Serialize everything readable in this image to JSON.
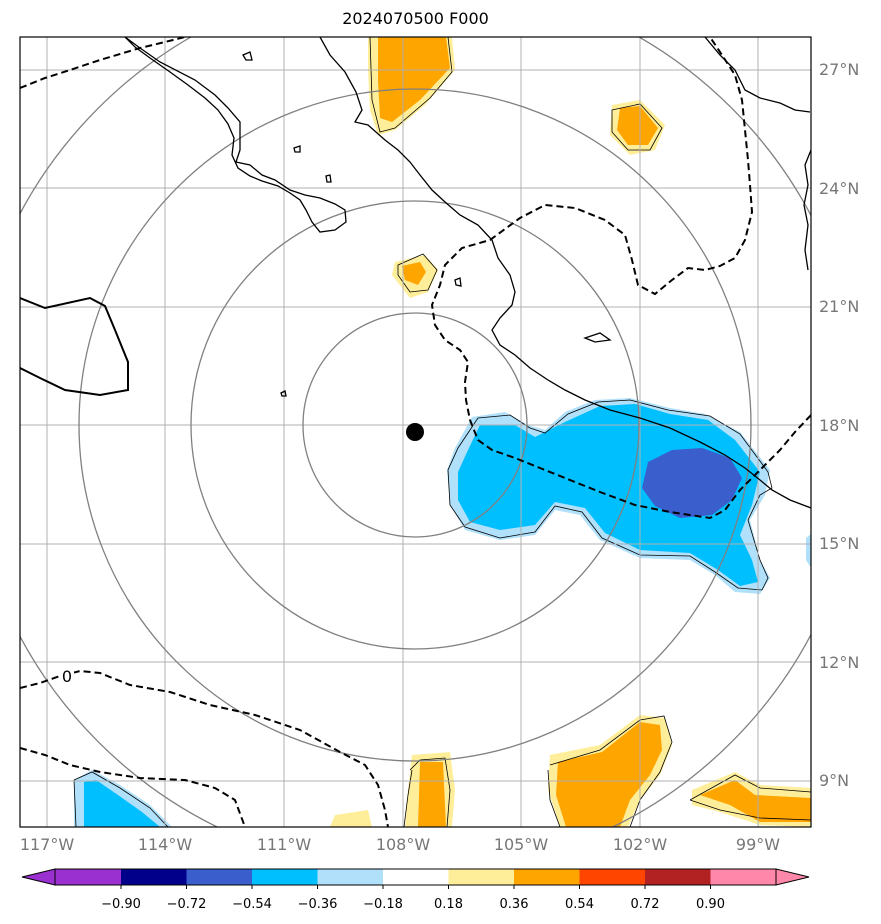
{
  "title": "2024070500 F000",
  "lat_labels": [
    "27°N",
    "24°N",
    "21°N",
    "18°N",
    "15°N",
    "12°N",
    "9°N"
  ],
  "lon_labels": [
    "117°W",
    "114°W",
    "111°W",
    "108°W",
    "105°W",
    "102°W",
    "99°W"
  ],
  "contour_label": "0",
  "colorbar": {
    "ticks": [
      "−0.90",
      "−0.72",
      "−0.54",
      "−0.36",
      "−0.18",
      "0.18",
      "0.36",
      "0.54",
      "0.72",
      "0.90"
    ],
    "colors": {
      "under": "#9b30d0",
      "c1": "#00008b",
      "c2": "#3a5fcd",
      "c3": "#00bfff",
      "c4": "#b0e0fa",
      "c5": "#ffffff",
      "c6": "#ffee99",
      "c7": "#ffa500",
      "c8": "#ff4500",
      "c9": "#b22222",
      "over": "#ff88aa"
    }
  },
  "map": {
    "extent_lon": [
      -118,
      -98
    ],
    "extent_lat": [
      8,
      28
    ],
    "storm_center": {
      "lon": -107.7,
      "lat": 17.8
    },
    "range_ring_color": "#808080",
    "gridline_color": "#b0b0b0"
  }
}
